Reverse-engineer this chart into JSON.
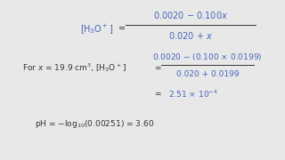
{
  "background_color": "#e8e8e8",
  "content_bg": "#f0f0f0",
  "border_color": "#111111",
  "text_color_black": "#333333",
  "text_color_blue": "#4466bb",
  "figsize": [
    3.2,
    1.8
  ],
  "dpi": 100
}
